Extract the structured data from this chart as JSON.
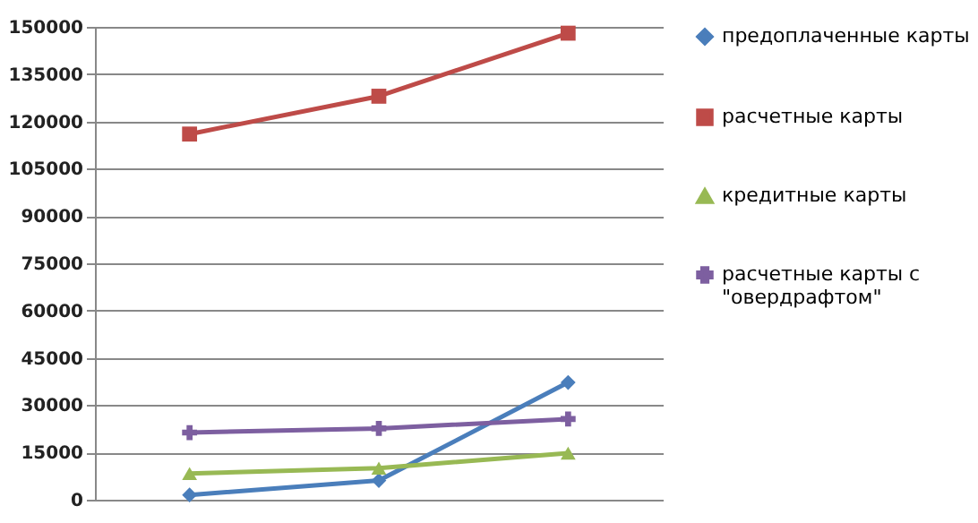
{
  "chart_data": {
    "type": "line",
    "categories": [
      null,
      null,
      null
    ],
    "series": [
      {
        "name": "предоплаченные карты",
        "color": "#4a7ebb",
        "marker": "diamond",
        "values": [
          1500,
          6100,
          37200
        ]
      },
      {
        "name": "расчетные карты",
        "color": "#be4b48",
        "marker": "square",
        "values": [
          116000,
          128000,
          148000
        ]
      },
      {
        "name": "кредитные карты",
        "color": "#98b954",
        "marker": "triangle",
        "values": [
          8300,
          10000,
          14800
        ]
      },
      {
        "name": "расчетные карты с \"овердрафтом\"",
        "color": "#7d5fa0",
        "marker": "cross",
        "values": [
          21300,
          22600,
          25600
        ]
      }
    ],
    "ylim": [
      0,
      150000
    ],
    "yticks": [
      0,
      15000,
      30000,
      45000,
      60000,
      75000,
      90000,
      105000,
      120000,
      135000,
      150000
    ],
    "grid": "y",
    "legend": "right",
    "tick_labels": "y"
  }
}
